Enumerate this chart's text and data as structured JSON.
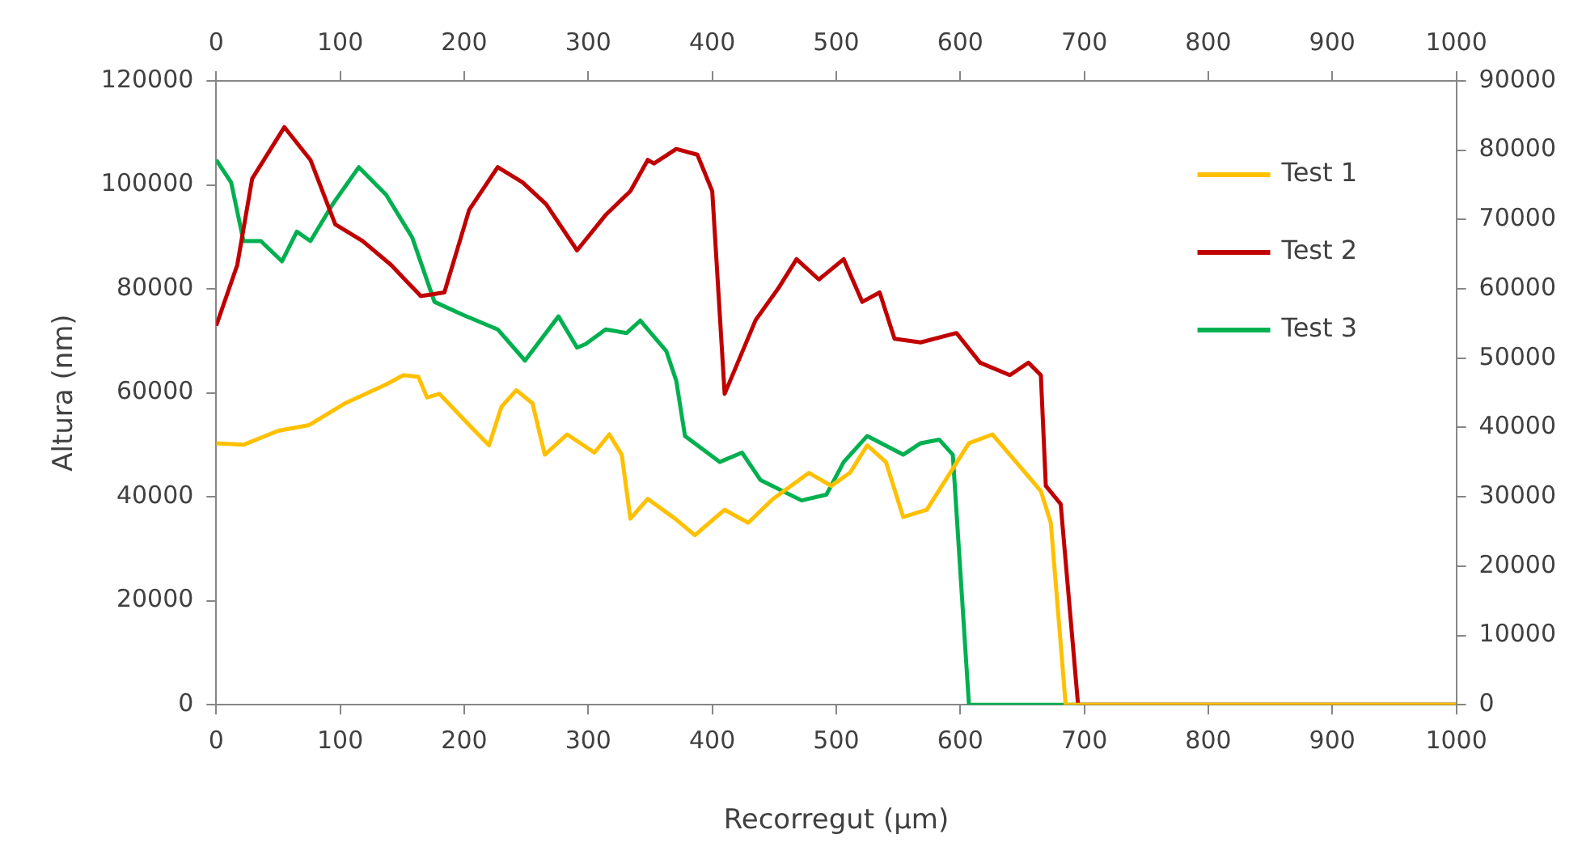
{
  "chart_data": {
    "type": "line",
    "xlabel": "Recorregut (µm)",
    "ylabel": "Altura (nm)",
    "xlim": [
      0,
      1000
    ],
    "xticks": [
      0,
      100,
      200,
      300,
      400,
      500,
      600,
      700,
      800,
      900,
      1000
    ],
    "x2lim": [
      0,
      1000
    ],
    "x2ticks": [
      0,
      100,
      200,
      300,
      400,
      500,
      600,
      700,
      800,
      900,
      1000
    ],
    "ylim": [
      0,
      120000
    ],
    "yticks": [
      0,
      20000,
      40000,
      60000,
      80000,
      100000,
      120000
    ],
    "y2lim": [
      0,
      90000
    ],
    "y2ticks": [
      0,
      10000,
      20000,
      30000,
      40000,
      50000,
      60000,
      70000,
      80000,
      90000
    ],
    "grid": false,
    "legend": "top right",
    "marker": "none",
    "line_style": "solid",
    "series": [
      {
        "name": "Test 1",
        "color": "#ffc000",
        "x": [
          0,
          22,
          50,
          75,
          104,
          137,
          151,
          163,
          170,
          180,
          204,
          220,
          230,
          242,
          255,
          265,
          283,
          305,
          317,
          327,
          334,
          348,
          370,
          386,
          410,
          429,
          449,
          478,
          496,
          511,
          525,
          540,
          554,
          573,
          607,
          626,
          640,
          665,
          673,
          685,
          1000
        ],
        "values": [
          50300,
          50000,
          52700,
          53800,
          58000,
          61600,
          63400,
          63100,
          59100,
          59800,
          53800,
          49900,
          57300,
          60500,
          58000,
          48100,
          52000,
          48500,
          52000,
          48100,
          35800,
          39600,
          35800,
          32600,
          37500,
          35000,
          39600,
          44600,
          42100,
          44600,
          49900,
          46700,
          36100,
          37500,
          50300,
          52000,
          48100,
          41100,
          35000,
          0,
          0
        ]
      },
      {
        "name": "Test 2",
        "color": "#c00000",
        "x": [
          0,
          17,
          29,
          55,
          76,
          96,
          118,
          141,
          165,
          184,
          204,
          227,
          247,
          266,
          291,
          314,
          334,
          348,
          353,
          371,
          388,
          400,
          410,
          435,
          453,
          468,
          486,
          506,
          521,
          535,
          547,
          568,
          597,
          616,
          640,
          655,
          665,
          669,
          681,
          695,
          1000
        ],
        "values": [
          72900,
          84600,
          101200,
          111100,
          104800,
          92400,
          89200,
          84600,
          78600,
          79300,
          95200,
          103400,
          100500,
          96300,
          87400,
          94200,
          98800,
          104800,
          104100,
          106900,
          105800,
          98800,
          59800,
          74000,
          80000,
          85700,
          81800,
          85700,
          77500,
          79300,
          70400,
          69700,
          71500,
          65800,
          63400,
          65800,
          63400,
          42100,
          38600,
          0,
          0
        ]
      },
      {
        "name": "Test 3",
        "color": "#00b050",
        "x": [
          0,
          12,
          22,
          36,
          53,
          65,
          76,
          94,
          115,
          137,
          158,
          176,
          199,
          227,
          249,
          276,
          291,
          298,
          314,
          331,
          342,
          363,
          371,
          378,
          406,
          424,
          439,
          472,
          492,
          506,
          525,
          554,
          568,
          583,
          594,
          607,
          1000
        ],
        "values": [
          104800,
          100500,
          89200,
          89200,
          85300,
          91000,
          89200,
          96300,
          103400,
          98100,
          89900,
          77500,
          75000,
          72200,
          66200,
          74700,
          68700,
          69400,
          72200,
          71500,
          73900,
          68000,
          62300,
          51700,
          46700,
          48500,
          43200,
          39300,
          40400,
          46700,
          51700,
          48100,
          50300,
          51000,
          48100,
          0,
          0
        ]
      }
    ]
  }
}
